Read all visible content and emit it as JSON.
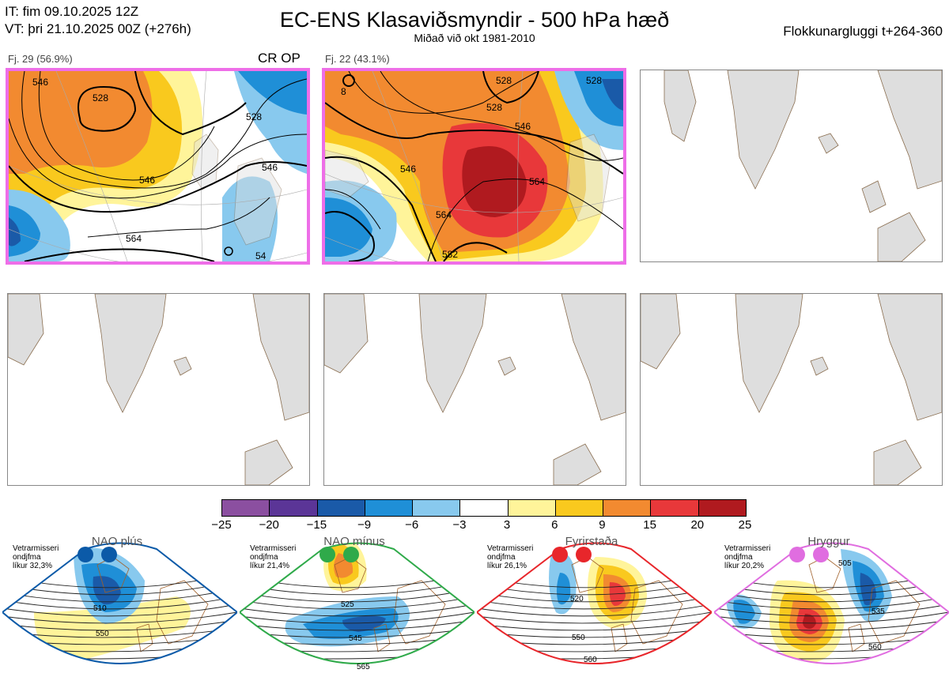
{
  "header": {
    "it_line": "IT: fim 09.10.2025 12Z",
    "vt_line": "VT: þri 21.10.2025 00Z  (+276h)",
    "title": "EC-ENS Klasaviðsmyndir - 500 hPa hæð",
    "subtitle": "Miðað við okt 1981-2010",
    "window": "Flokkunargluggi t+264-360"
  },
  "panels": [
    {
      "label": "Fj. 29 (56.9%)",
      "tag": "CR OP",
      "highlight": true,
      "contours": [
        "528",
        "528",
        "546",
        "546",
        "564",
        "54",
        "546"
      ]
    },
    {
      "label": "Fj. 22 (43.1%)",
      "tag": "",
      "highlight": true,
      "contours": [
        "528",
        "546",
        "546",
        "564",
        "564",
        "582",
        "528",
        "528",
        "8"
      ]
    }
  ],
  "colorbar": {
    "ticks": [
      "−25",
      "−20",
      "−15",
      "−9",
      "−6",
      "−3",
      "3",
      "6",
      "9",
      "15",
      "20",
      "25"
    ],
    "colors": [
      "#8b4fa0",
      "#5b3597",
      "#1a5aa8",
      "#1f8fd7",
      "#88c9ee",
      "#ffffff",
      "#fff49a",
      "#f9c91e",
      "#f28a30",
      "#e8383a",
      "#b01a1f"
    ]
  },
  "regimes": [
    {
      "name": "NAO plús",
      "season": "Vetrarmisseri",
      "unit": "ondjfma",
      "prob": "líkur 32,3%",
      "color": "#0b5aa8",
      "contours": [
        "510",
        "550"
      ]
    },
    {
      "name": "NAO mínus",
      "season": "Vetrarmisseri",
      "unit": "ondjfma",
      "prob": "líkur 21,4%",
      "color": "#2faa4a",
      "contours": [
        "525",
        "545",
        "565"
      ]
    },
    {
      "name": "Fyrirstaða",
      "season": "Vetrarmisseri",
      "unit": "ondjfma",
      "prob": "líkur 26,1%",
      "color": "#e8262b",
      "contours": [
        "520",
        "550",
        "560"
      ]
    },
    {
      "name": "Hryggur",
      "season": "Vetrarmisseri",
      "unit": "ondjfma",
      "prob": "líkur 20,2%",
      "color": "#e06de0",
      "contours": [
        "505",
        "535",
        "560"
      ]
    }
  ]
}
